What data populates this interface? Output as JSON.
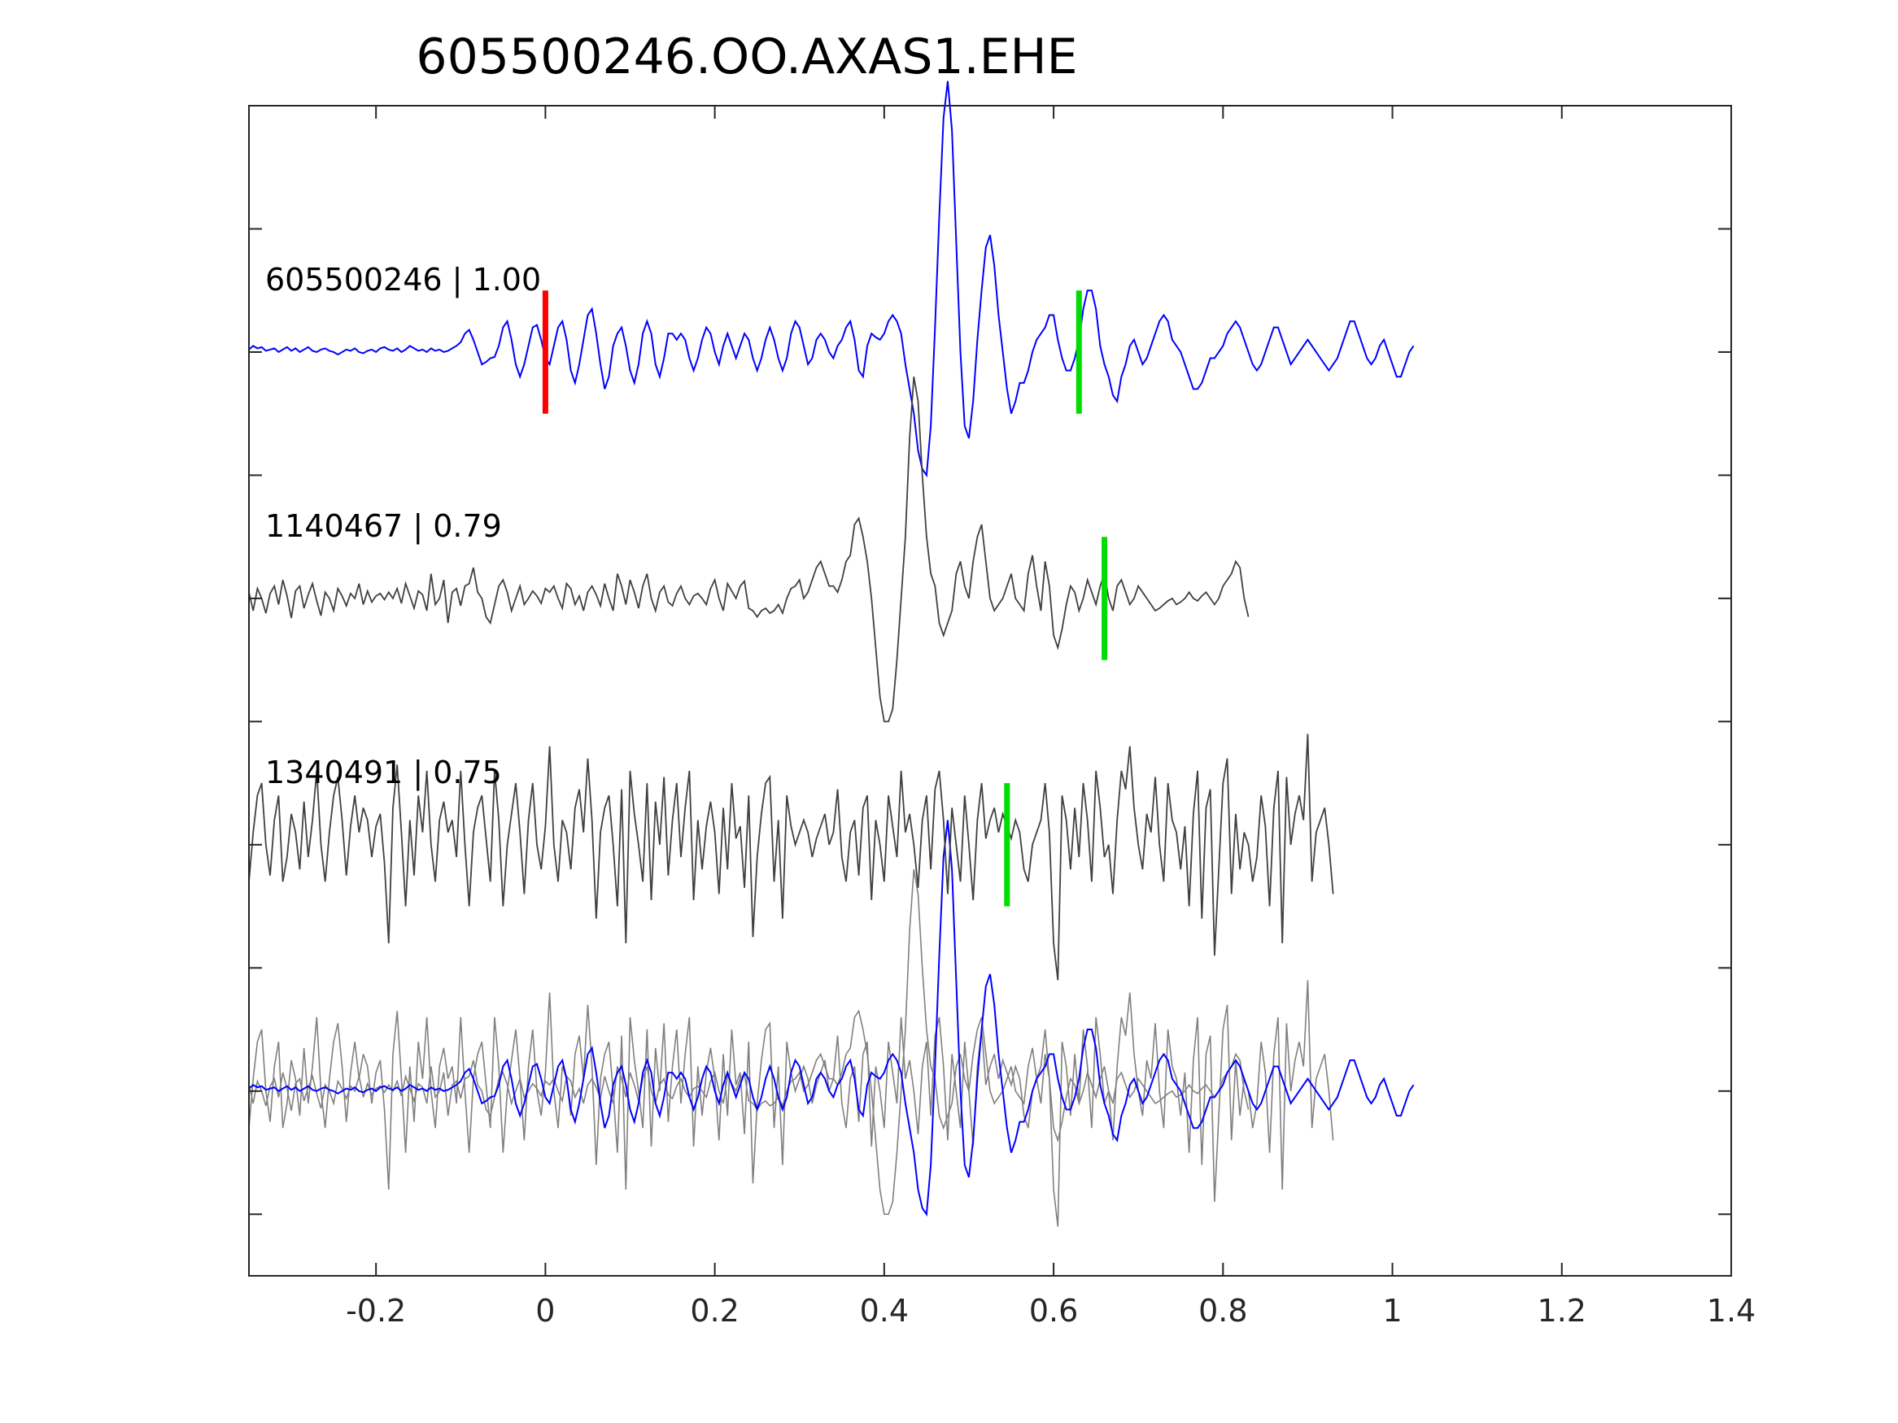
{
  "chart_data": {
    "type": "line",
    "title": "605500246.OO.AXAS1.EHE",
    "xlabel": "",
    "ylabel": "",
    "xlim": [
      -0.35,
      1.4
    ],
    "ylim": [
      -1.5,
      8.0
    ],
    "x_ticks": [
      -0.2,
      0,
      0.2,
      0.4,
      0.6,
      0.8,
      1,
      1.2,
      1.4
    ],
    "x_tick_labels": [
      "-0.2",
      "0",
      "0.2",
      "0.4",
      "0.6",
      "0.8",
      "1",
      "1.2",
      "1.4"
    ],
    "y_ticks": [
      -1,
      0,
      1,
      2,
      3,
      4,
      5,
      6,
      7
    ],
    "grid": false,
    "colors": {
      "template": "#0000ff",
      "detection": "#404040",
      "overlay": "#808080",
      "p_pick": "#ff0000",
      "s_pick": "#00dd00",
      "axis": "#262626"
    },
    "series": [
      {
        "label": "605500246 | 1.00",
        "offset": 6,
        "color_key": "template",
        "t_start": -0.35,
        "dt": 0.005,
        "values": [
          0.02,
          0.05,
          0.03,
          0.04,
          0.01,
          0.02,
          0.03,
          0.0,
          0.02,
          0.04,
          0.01,
          0.03,
          0.0,
          0.02,
          0.04,
          0.01,
          0.0,
          0.02,
          0.03,
          0.01,
          0.0,
          -0.02,
          0.0,
          0.02,
          0.01,
          0.03,
          0.0,
          -0.01,
          0.01,
          0.02,
          0.0,
          0.03,
          0.04,
          0.02,
          0.01,
          0.03,
          0.0,
          0.02,
          0.05,
          0.03,
          0.01,
          0.02,
          0.0,
          0.03,
          0.01,
          0.02,
          0.0,
          0.01,
          0.03,
          0.05,
          0.08,
          0.15,
          0.18,
          0.1,
          0.0,
          -0.1,
          -0.08,
          -0.05,
          -0.04,
          0.05,
          0.2,
          0.25,
          0.1,
          -0.1,
          -0.2,
          -0.1,
          0.05,
          0.2,
          0.22,
          0.1,
          -0.05,
          -0.1,
          0.05,
          0.2,
          0.25,
          0.1,
          -0.15,
          -0.25,
          -0.1,
          0.1,
          0.3,
          0.35,
          0.15,
          -0.1,
          -0.3,
          -0.2,
          0.05,
          0.15,
          0.2,
          0.05,
          -0.15,
          -0.25,
          -0.1,
          0.15,
          0.25,
          0.15,
          -0.1,
          -0.2,
          -0.05,
          0.15,
          0.15,
          0.1,
          0.15,
          0.1,
          -0.05,
          -0.15,
          -0.05,
          0.1,
          0.2,
          0.15,
          0.0,
          -0.1,
          0.05,
          0.15,
          0.05,
          -0.05,
          0.05,
          0.15,
          0.1,
          -0.05,
          -0.15,
          -0.05,
          0.1,
          0.2,
          0.1,
          -0.05,
          -0.15,
          -0.05,
          0.15,
          0.25,
          0.2,
          0.05,
          -0.1,
          -0.05,
          0.1,
          0.15,
          0.1,
          0.0,
          -0.05,
          0.05,
          0.1,
          0.2,
          0.25,
          0.1,
          -0.15,
          -0.2,
          0.05,
          0.15,
          0.12,
          0.1,
          0.15,
          0.25,
          0.3,
          0.25,
          0.15,
          -0.1,
          -0.3,
          -0.5,
          -0.8,
          -0.95,
          -1.0,
          -0.6,
          0.2,
          1.1,
          1.9,
          2.2,
          1.8,
          0.9,
          0.0,
          -0.6,
          -0.7,
          -0.4,
          0.1,
          0.5,
          0.85,
          0.95,
          0.7,
          0.3,
          0.0,
          -0.3,
          -0.5,
          -0.4,
          -0.25,
          -0.25,
          -0.15,
          0.0,
          0.1,
          0.15,
          0.2,
          0.3,
          0.3,
          0.1,
          -0.05,
          -0.15,
          -0.15,
          -0.05,
          0.1,
          0.35,
          0.5,
          0.5,
          0.35,
          0.05,
          -0.1,
          -0.2,
          -0.35,
          -0.4,
          -0.2,
          -0.1,
          0.05,
          0.1,
          0.0,
          -0.1,
          -0.05,
          0.05,
          0.15,
          0.25,
          0.3,
          0.25,
          0.1,
          0.05,
          0.0,
          -0.1,
          -0.2,
          -0.3,
          -0.3,
          -0.25,
          -0.15,
          -0.05,
          -0.05,
          0.0,
          0.05,
          0.15,
          0.2,
          0.25,
          0.2,
          0.1,
          0.0,
          -0.1,
          -0.15,
          -0.1,
          0.0,
          0.1,
          0.2,
          0.2,
          0.1,
          0.0,
          -0.1,
          -0.05,
          0.0,
          0.05,
          0.1,
          0.05,
          0.0,
          -0.05,
          -0.1,
          -0.15,
          -0.1,
          -0.05,
          0.05,
          0.15,
          0.25,
          0.25,
          0.15,
          0.05,
          -0.05,
          -0.1,
          -0.05,
          0.05,
          0.1,
          0.0,
          -0.1,
          -0.2,
          -0.2,
          -0.1,
          0.0,
          0.05
        ]
      },
      {
        "label": "1140467 | 0.79",
        "offset": 4,
        "color_key": "detection",
        "t_start": -0.35,
        "dt": 0.005,
        "values": [
          0.05,
          -0.1,
          0.08,
          0.0,
          -0.12,
          0.04,
          0.1,
          -0.05,
          0.15,
          0.02,
          -0.16,
          0.06,
          0.1,
          -0.08,
          0.03,
          0.12,
          -0.02,
          -0.14,
          0.05,
          0.0,
          -0.1,
          0.08,
          0.02,
          -0.06,
          0.04,
          0.0,
          0.12,
          -0.05,
          0.06,
          -0.03,
          0.02,
          0.04,
          -0.01,
          0.05,
          0.0,
          0.08,
          -0.04,
          0.12,
          0.02,
          -0.08,
          0.06,
          0.03,
          -0.1,
          0.2,
          -0.05,
          0.0,
          0.15,
          -0.2,
          0.05,
          0.08,
          -0.06,
          0.1,
          0.12,
          0.25,
          0.05,
          0.0,
          -0.15,
          -0.2,
          -0.05,
          0.1,
          0.15,
          0.05,
          -0.1,
          0.0,
          0.1,
          -0.05,
          0.0,
          0.06,
          0.02,
          -0.04,
          0.08,
          0.05,
          0.1,
          0.0,
          -0.08,
          0.12,
          0.08,
          -0.05,
          0.02,
          -0.1,
          0.05,
          0.1,
          0.03,
          -0.06,
          0.12,
          0.0,
          -0.1,
          0.2,
          0.1,
          -0.05,
          0.15,
          0.05,
          -0.08,
          0.1,
          0.2,
          0.0,
          -0.1,
          0.05,
          0.1,
          -0.03,
          -0.06,
          0.04,
          0.1,
          0.0,
          -0.05,
          0.02,
          0.04,
          0.0,
          -0.05,
          0.08,
          0.15,
          0.0,
          -0.1,
          0.12,
          0.06,
          0.0,
          0.1,
          0.14,
          -0.08,
          -0.1,
          -0.15,
          -0.1,
          -0.08,
          -0.12,
          -0.1,
          -0.05,
          -0.12,
          0.0,
          0.08,
          0.1,
          0.15,
          0.0,
          0.05,
          0.15,
          0.25,
          0.3,
          0.2,
          0.1,
          0.1,
          0.05,
          0.15,
          0.3,
          0.35,
          0.6,
          0.65,
          0.5,
          0.3,
          0.0,
          -0.4,
          -0.8,
          -1.0,
          -1.0,
          -0.9,
          -0.5,
          0.0,
          0.5,
          1.3,
          1.8,
          1.6,
          1.0,
          0.5,
          0.2,
          0.1,
          -0.2,
          -0.3,
          -0.2,
          -0.1,
          0.2,
          0.3,
          0.1,
          0.0,
          0.3,
          0.5,
          0.6,
          0.3,
          0.0,
          -0.1,
          -0.05,
          0.0,
          0.1,
          0.2,
          0.0,
          -0.05,
          -0.1,
          0.2,
          0.35,
          0.1,
          -0.1,
          0.3,
          0.1,
          -0.3,
          -0.4,
          -0.25,
          -0.05,
          0.1,
          0.05,
          -0.1,
          0.0,
          0.15,
          0.05,
          -0.05,
          0.1,
          0.2,
          0.0,
          -0.1,
          0.1,
          0.15,
          0.05,
          -0.05,
          0.0,
          0.1,
          0.05,
          0.0,
          -0.05,
          -0.1,
          -0.08,
          -0.05,
          -0.02,
          0.0,
          -0.05,
          -0.03,
          0.0,
          0.05,
          0.0,
          -0.02,
          0.02,
          0.05,
          0.0,
          -0.05,
          0.0,
          0.1,
          0.15,
          0.2,
          0.3,
          0.25,
          0.0,
          -0.15
        ]
      },
      {
        "label": "1340491 | 0.75",
        "offset": 2,
        "color_key": "detection",
        "t_start": -0.35,
        "dt": 0.005,
        "values": [
          -0.3,
          0.1,
          0.4,
          0.5,
          0.0,
          -0.25,
          0.2,
          0.4,
          -0.3,
          -0.1,
          0.25,
          0.1,
          -0.2,
          0.35,
          -0.1,
          0.2,
          0.6,
          0.0,
          -0.3,
          0.1,
          0.4,
          0.55,
          0.2,
          -0.25,
          0.15,
          0.4,
          0.1,
          0.3,
          0.2,
          -0.1,
          0.15,
          0.25,
          -0.15,
          -0.8,
          0.3,
          0.65,
          0.1,
          -0.5,
          0.2,
          -0.25,
          0.4,
          0.1,
          0.6,
          0.0,
          -0.3,
          0.2,
          0.35,
          0.1,
          0.2,
          -0.1,
          0.6,
          0.0,
          -0.5,
          0.1,
          0.3,
          0.4,
          0.05,
          -0.3,
          0.6,
          0.2,
          -0.5,
          0.0,
          0.25,
          0.5,
          0.1,
          -0.4,
          0.2,
          0.5,
          0.0,
          -0.2,
          0.15,
          0.8,
          0.0,
          -0.3,
          0.2,
          0.1,
          -0.2,
          0.3,
          0.45,
          0.1,
          0.7,
          0.2,
          -0.6,
          0.1,
          0.3,
          0.4,
          0.0,
          -0.5,
          0.45,
          -0.8,
          0.6,
          0.25,
          0.0,
          -0.3,
          0.5,
          -0.45,
          0.35,
          0.0,
          0.55,
          -0.25,
          0.2,
          0.5,
          -0.1,
          0.3,
          0.6,
          -0.45,
          0.2,
          -0.2,
          0.15,
          0.35,
          0.1,
          -0.4,
          0.3,
          -0.2,
          0.5,
          0.05,
          0.15,
          -0.35,
          0.4,
          -0.75,
          -0.1,
          0.25,
          0.5,
          0.55,
          -0.3,
          0.2,
          -0.6,
          0.4,
          0.15,
          0.0,
          0.1,
          0.2,
          0.1,
          -0.1,
          0.05,
          0.15,
          0.25,
          0.0,
          0.1,
          0.45,
          -0.1,
          -0.3,
          0.1,
          0.2,
          -0.25,
          0.3,
          0.4,
          -0.45,
          0.2,
          0.0,
          -0.3,
          0.4,
          0.15,
          -0.1,
          0.6,
          0.1,
          0.25,
          0.0,
          -0.35,
          0.2,
          0.4,
          -0.2,
          0.45,
          0.6,
          0.2,
          -0.4,
          0.3,
          0.0,
          -0.3,
          0.4,
          0.0,
          -0.45,
          0.2,
          0.5,
          0.05,
          0.2,
          0.3,
          0.1,
          0.25,
          0.15,
          0.05,
          0.2,
          0.1,
          -0.2,
          -0.3,
          0.0,
          0.1,
          0.2,
          0.5,
          0.1,
          -0.8,
          -1.1,
          0.4,
          0.2,
          -0.2,
          0.3,
          -0.1,
          0.5,
          0.2,
          -0.3,
          0.6,
          0.3,
          -0.1,
          0.0,
          -0.4,
          0.2,
          0.6,
          0.45,
          0.8,
          0.3,
          0.0,
          -0.2,
          0.25,
          0.1,
          0.55,
          0.0,
          -0.3,
          0.5,
          0.2,
          0.1,
          -0.2,
          0.15,
          -0.5,
          0.25,
          0.6,
          -0.6,
          0.3,
          0.45,
          -0.9,
          -0.2,
          0.5,
          0.7,
          -0.4,
          0.25,
          -0.2,
          0.1,
          0.0,
          -0.3,
          -0.1,
          0.4,
          0.15,
          -0.5,
          0.3,
          0.6,
          -0.8,
          0.55,
          0.0,
          0.25,
          0.4,
          0.2,
          0.9,
          -0.3,
          0.1,
          0.2,
          0.3,
          0.0,
          -0.4
        ]
      }
    ],
    "overlay": {
      "offset": 0,
      "note_series": [
        0,
        1,
        2
      ]
    },
    "picks": [
      {
        "series": 0,
        "time": 0.0,
        "color_key": "p_pick"
      },
      {
        "series": 0,
        "time": 0.63,
        "color_key": "s_pick"
      },
      {
        "series": 1,
        "time": 0.66,
        "color_key": "s_pick"
      },
      {
        "series": 2,
        "time": 0.545,
        "color_key": "s_pick"
      }
    ],
    "pick_half_height": 0.5
  }
}
